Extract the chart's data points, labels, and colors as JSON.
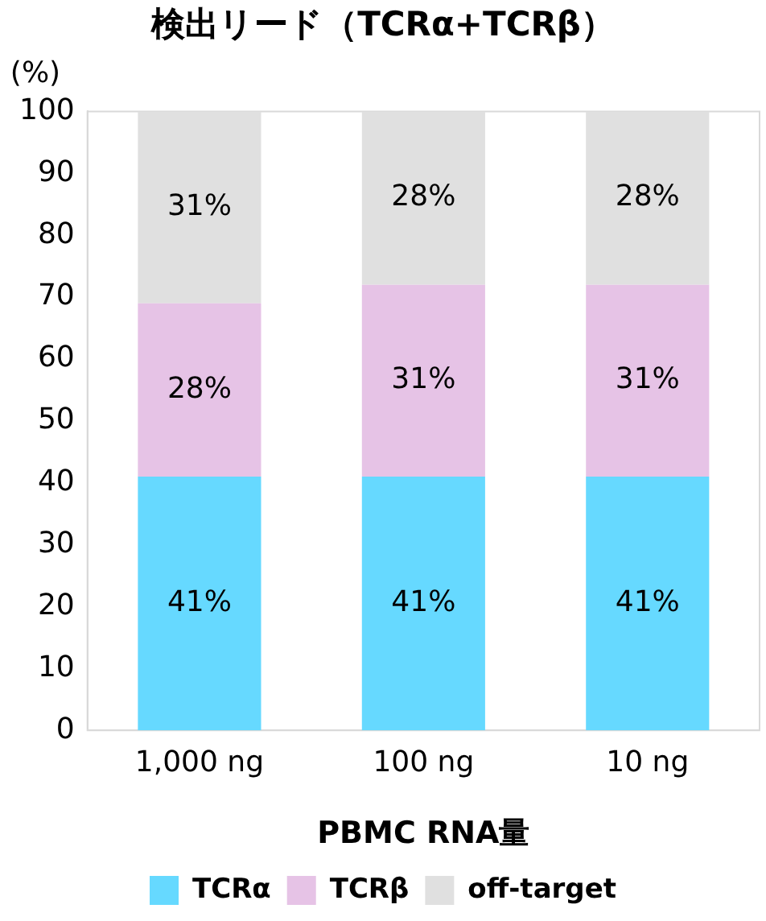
{
  "chart_data": {
    "type": "bar",
    "title": "検出リード（TCRα+TCRβ）",
    "xlabel": "PBMC RNA量",
    "ylabel": "(%)",
    "categories": [
      "1,000 ng",
      "100 ng",
      "10 ng"
    ],
    "stacked": true,
    "series": [
      {
        "name": "TCRα",
        "color": "#66d9ff",
        "values": [
          41,
          41,
          41
        ],
        "value_labels": [
          "41%",
          "41%",
          "41%"
        ]
      },
      {
        "name": "TCRβ",
        "color": "#e6c3e6",
        "values": [
          28,
          31,
          31
        ],
        "value_labels": [
          "28%",
          "31%",
          "31%"
        ]
      },
      {
        "name": "off-target",
        "color": "#e0e0e0",
        "values": [
          31,
          28,
          28
        ],
        "value_labels": [
          "31%",
          "28%",
          "28%"
        ]
      }
    ],
    "ylim": [
      0,
      100
    ],
    "yticks": [
      0,
      10,
      20,
      30,
      40,
      50,
      60,
      70,
      80,
      90,
      100
    ],
    "grid": false,
    "legend": "bottom"
  }
}
